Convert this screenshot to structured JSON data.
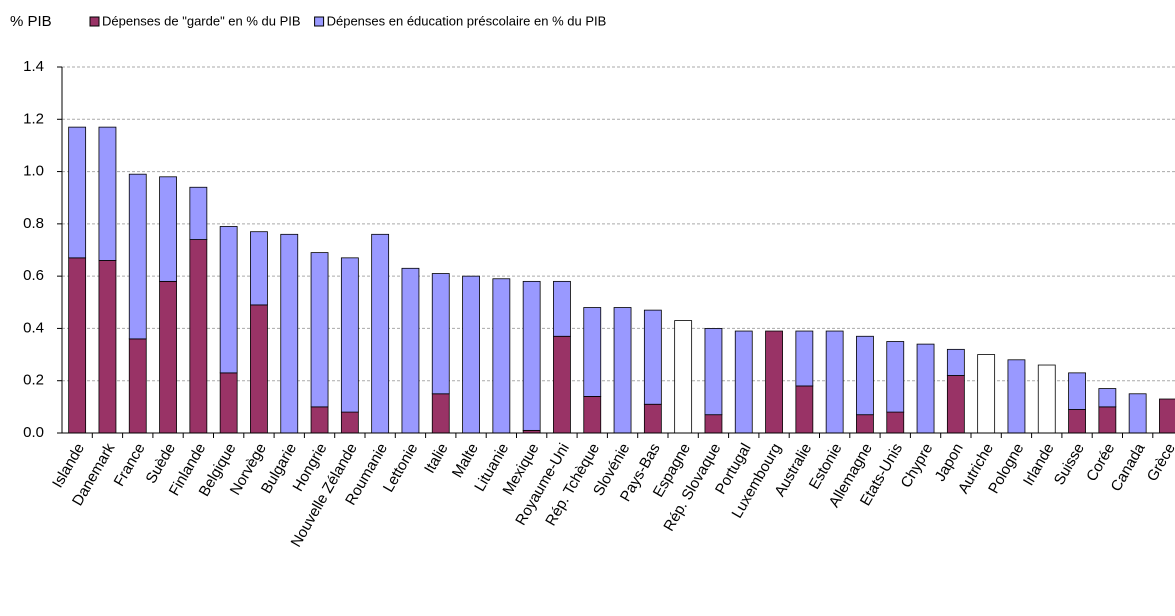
{
  "chart_data": {
    "type": "stacked_bar",
    "y_label": "% PIB",
    "categories": [
      "Islande",
      "Danemark",
      "France",
      "Suède",
      "Finlande",
      "Belgique",
      "Norvège",
      "Bulgarie",
      "Hongrie",
      "Nouvelle Zélande",
      "Roumanie",
      "Lettonie",
      "Italie",
      "Malte",
      "Lituanie",
      "Mexique",
      "Royaume-Uni",
      "Rép. Tchèque",
      "Slovénie",
      "Pays-Bas",
      "Espagne",
      "Rép. Slovaque",
      "Portugal",
      "Luxembourg",
      "Australie",
      "Estonie",
      "Allemagne",
      "Etats-Unis",
      "Chypre",
      "Japon",
      "Autriche",
      "Pologne",
      "Irlande",
      "Suisse",
      "Corée",
      "Canada",
      "Grèce"
    ],
    "series": [
      {
        "name": "Dépenses de \"garde\" en % du PIB",
        "color": "#993366",
        "values": [
          0.67,
          0.66,
          0.36,
          0.58,
          0.74,
          0.23,
          0.49,
          0,
          0.1,
          0.08,
          0,
          0,
          0.15,
          0,
          0,
          0.01,
          0.37,
          0.14,
          0,
          0.11,
          null,
          0.07,
          0,
          0.39,
          0.18,
          0,
          0.07,
          0.08,
          0,
          0.22,
          null,
          0,
          null,
          0.09,
          0.1,
          0,
          0.13
        ]
      },
      {
        "name": "Dépenses en éducation préscolaire en % du PIB",
        "color": "#9999ff",
        "values": [
          0.5,
          0.51,
          0.63,
          0.4,
          0.2,
          0.56,
          0.28,
          0.76,
          0.59,
          0.59,
          0.76,
          0.63,
          0.46,
          0.6,
          0.59,
          0.57,
          0.21,
          0.34,
          0.48,
          0.36,
          null,
          0.33,
          0.39,
          0,
          0.21,
          0.39,
          0.3,
          0.27,
          0.34,
          0.1,
          null,
          0.28,
          null,
          0.14,
          0.07,
          0.15,
          0
        ]
      }
    ],
    "unsplit": {
      "color": "#ffffff",
      "values": [
        null,
        null,
        null,
        null,
        null,
        null,
        null,
        null,
        null,
        null,
        null,
        null,
        null,
        null,
        null,
        null,
        null,
        null,
        null,
        null,
        0.43,
        null,
        null,
        null,
        null,
        null,
        null,
        null,
        null,
        null,
        0.3,
        null,
        0.26,
        null,
        null,
        null,
        null
      ]
    },
    "ylim": [
      0,
      1.4
    ],
    "yticks": [
      {
        "value": 0,
        "label": "0.0"
      },
      0.2,
      0.4,
      0.6,
      0.8,
      {
        "value": 1,
        "label": "1.0"
      },
      1.2,
      1.4
    ],
    "grid": true
  }
}
